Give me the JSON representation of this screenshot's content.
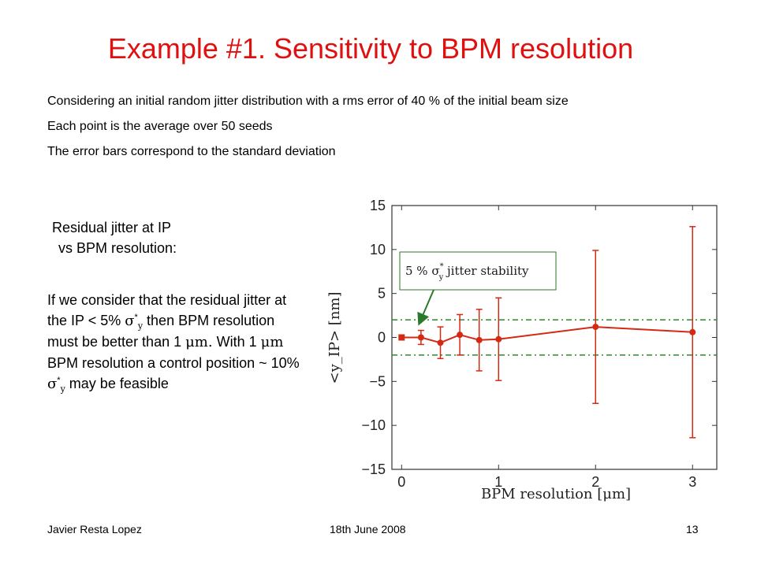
{
  "slide": {
    "title": "Example #1. Sensitivity to BPM resolution",
    "bullets": [
      "Considering an initial random jitter distribution with a rms error of 40 % of the initial beam size",
      "Each point is the average over 50 seeds",
      "The error bars correspond to the standard deviation"
    ],
    "caption_line1": "Residual jitter at IP",
    "caption_line2": "vs BPM resolution:",
    "para": {
      "p1": "If we consider that the residual jitter at the IP < 5% ",
      "sigma": "σ",
      "star": "*",
      "sub_y": "y",
      "p2": " then BPM resolution must be better than 1 ",
      "mu_unit": "μm.",
      "p3": " With 1 ",
      "mu_unit2": "μm",
      "p4": " BPM resolution a control position ~ 10% ",
      "p5": " may be feasible"
    }
  },
  "footer": {
    "author": "Javier Resta Lopez",
    "date": "18th June 2008",
    "page": "13"
  },
  "colors": {
    "title": "#e01010",
    "series": "#d42a14",
    "band": "#2a8a2a",
    "annotation": "#2a7a2a"
  },
  "chart_data": {
    "type": "scatter",
    "xlabel": "BPM resolution [μm]",
    "ylabel": "<y_IP> [nm]",
    "xlim": [
      -0.1,
      3.25
    ],
    "ylim": [
      -15,
      15
    ],
    "xticks": [
      "0",
      "1",
      "2",
      "3"
    ],
    "yticks": [
      "−15",
      "−10",
      "−5",
      "0",
      "5",
      "10",
      "15"
    ],
    "series": [
      {
        "points": [
          {
            "x": 0.0,
            "y": 0.0,
            "err": 0.1
          },
          {
            "x": 0.2,
            "y": 0.0,
            "err": 0.8
          },
          {
            "x": 0.4,
            "y": -0.6,
            "err": 1.8
          },
          {
            "x": 0.6,
            "y": 0.3,
            "err": 2.3
          },
          {
            "x": 0.8,
            "y": -0.3,
            "err": 3.5
          },
          {
            "x": 1.0,
            "y": -0.2,
            "err": 4.7
          },
          {
            "x": 2.0,
            "y": 1.2,
            "err": 8.7
          },
          {
            "x": 3.0,
            "y": 0.6,
            "err": 12.0
          }
        ]
      }
    ],
    "reference_lines": [
      2,
      -2
    ],
    "annotation": {
      "pre": "5 % ",
      "sigma": "σ",
      "star": "*",
      "sub": "y",
      "post": " jitter stability"
    }
  }
}
